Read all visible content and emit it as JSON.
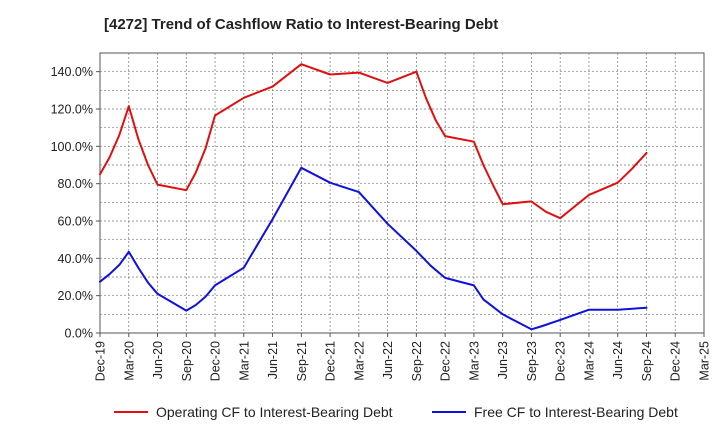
{
  "title": "[4272]  Trend of Cashflow Ratio to Interest-Bearing Debt",
  "chart_data": {
    "type": "line",
    "title": "[4272]  Trend of Cashflow Ratio to Interest-Bearing Debt",
    "xlabel": "",
    "ylabel": "",
    "categories": [
      "Dec-19",
      "Mar-20",
      "Jun-20",
      "Sep-20",
      "Dec-20",
      "Mar-21",
      "Jun-21",
      "Sep-21",
      "Dec-21",
      "Mar-22",
      "Jun-22",
      "Sep-22",
      "Dec-22",
      "Mar-23",
      "Jun-23",
      "Sep-23",
      "Dec-23",
      "Mar-24",
      "Jun-24",
      "Sep-24",
      "Dec-24",
      "Mar-25"
    ],
    "ylim": [
      0,
      150
    ],
    "yticks": [
      0,
      20,
      40,
      60,
      80,
      100,
      120,
      140
    ],
    "ytick_labels": [
      "0.0%",
      "20.0%",
      "40.0%",
      "60.0%",
      "80.0%",
      "100.0%",
      "120.0%",
      "140.0%"
    ],
    "grid": true,
    "legend_position": "bottom",
    "series": [
      {
        "name": "Operating CF to Interest-Bearing Debt",
        "color": "#e01010",
        "points": [
          [
            0,
            85
          ],
          [
            0.33,
            94
          ],
          [
            0.67,
            106
          ],
          [
            1,
            121.5
          ],
          [
            1.33,
            104
          ],
          [
            1.67,
            90
          ],
          [
            2,
            79.5
          ],
          [
            3,
            76.5
          ],
          [
            3.33,
            86
          ],
          [
            3.67,
            99
          ],
          [
            4,
            116.5
          ],
          [
            5,
            126
          ],
          [
            6,
            132
          ],
          [
            7,
            144
          ],
          [
            8,
            138.5
          ],
          [
            9,
            139.5
          ],
          [
            10,
            134
          ],
          [
            11,
            140
          ],
          [
            11.33,
            126
          ],
          [
            11.67,
            114
          ],
          [
            12,
            105.5
          ],
          [
            13,
            102.5
          ],
          [
            13.33,
            90
          ],
          [
            13.67,
            79
          ],
          [
            14,
            69
          ],
          [
            15,
            70.5
          ],
          [
            15.5,
            65
          ],
          [
            16,
            61.5
          ],
          [
            17,
            74
          ],
          [
            18,
            80.5
          ],
          [
            18.5,
            88
          ],
          [
            19,
            96.5
          ]
        ]
      },
      {
        "name": "Free CF to Interest-Bearing Debt",
        "color": "#1010e0",
        "points": [
          [
            0,
            27.5
          ],
          [
            0.33,
            31.5
          ],
          [
            0.67,
            36.5
          ],
          [
            1,
            43.5
          ],
          [
            1.33,
            35
          ],
          [
            1.67,
            27
          ],
          [
            2,
            21
          ],
          [
            3,
            12
          ],
          [
            3.33,
            15
          ],
          [
            3.67,
            19.5
          ],
          [
            4,
            25.5
          ],
          [
            5,
            35
          ],
          [
            6,
            61
          ],
          [
            7,
            88.5
          ],
          [
            8,
            80.5
          ],
          [
            9,
            75.5
          ],
          [
            10,
            58.5
          ],
          [
            11,
            44
          ],
          [
            11.5,
            36
          ],
          [
            12,
            29.5
          ],
          [
            13,
            25.5
          ],
          [
            13.33,
            18
          ],
          [
            13.67,
            14
          ],
          [
            14,
            10
          ],
          [
            15,
            2
          ],
          [
            15.33,
            3.5
          ],
          [
            16,
            7
          ],
          [
            17,
            12.5
          ],
          [
            18,
            12.5
          ],
          [
            19,
            13.5
          ]
        ]
      }
    ]
  }
}
